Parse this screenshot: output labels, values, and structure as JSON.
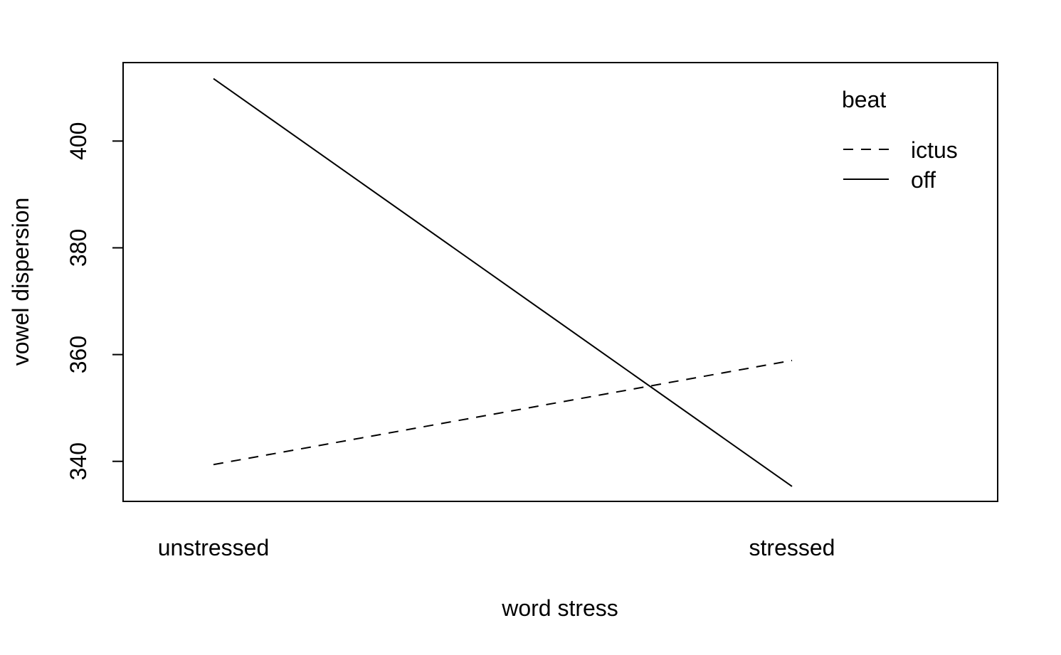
{
  "chart_data": {
    "type": "line",
    "title": "",
    "xlabel": "word stress",
    "ylabel": "vowel dispersion",
    "categories": [
      "unstressed",
      "stressed"
    ],
    "ylim": [
      332.5,
      414.7
    ],
    "yticks": [
      340,
      360,
      380,
      400
    ],
    "grid": false,
    "legend": {
      "title": "beat",
      "position": "top-right",
      "entries": [
        "ictus",
        "off"
      ]
    },
    "series": [
      {
        "name": "ictus",
        "line_style": "dashed",
        "color": "#000000",
        "values": [
          339.4,
          358.9
        ]
      },
      {
        "name": "off",
        "line_style": "solid",
        "color": "#000000",
        "values": [
          411.7,
          335.3
        ]
      }
    ]
  }
}
